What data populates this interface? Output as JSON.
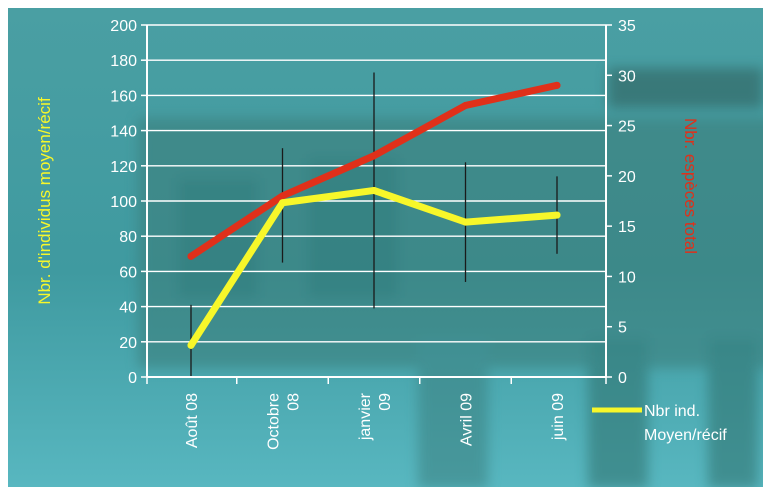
{
  "chart_data": {
    "type": "line",
    "categories": [
      "Août 08",
      "Octobre 08",
      "janvier 09",
      "Avril 09",
      "juin 09"
    ],
    "category_lines": [
      [
        "Août 08"
      ],
      [
        "Octobre",
        "08"
      ],
      [
        "janvier",
        "09"
      ],
      [
        "Avril 09"
      ],
      [
        "juin 09"
      ]
    ],
    "y_left": {
      "label": "Nbr. d'individus moyen/récif",
      "min": 0,
      "max": 200,
      "step": 20
    },
    "y_right": {
      "label": "Nbr. espèces total",
      "min": 0,
      "max": 35,
      "step": 5
    },
    "series": [
      {
        "name": "Nbr ind. Moyen/récif",
        "legend_lines": [
          "Nbr ind.",
          "Moyen/récif"
        ],
        "axis": "left",
        "color": "#f7f72a",
        "values": [
          18,
          99,
          106,
          88,
          92
        ],
        "error_low": [
          0,
          65,
          39,
          54,
          70
        ],
        "error_high": [
          41,
          130,
          173,
          122,
          114
        ]
      },
      {
        "axis": "right",
        "color": "#e0301a",
        "values": [
          12,
          18,
          22,
          27,
          29
        ]
      }
    ],
    "grid": true,
    "legend_position": "bottom-right",
    "axis_text_color": "#ffffff",
    "left_label_color": "#f7f72a",
    "right_label_color": "#e0301a",
    "background_color": "#3f9aa0"
  }
}
